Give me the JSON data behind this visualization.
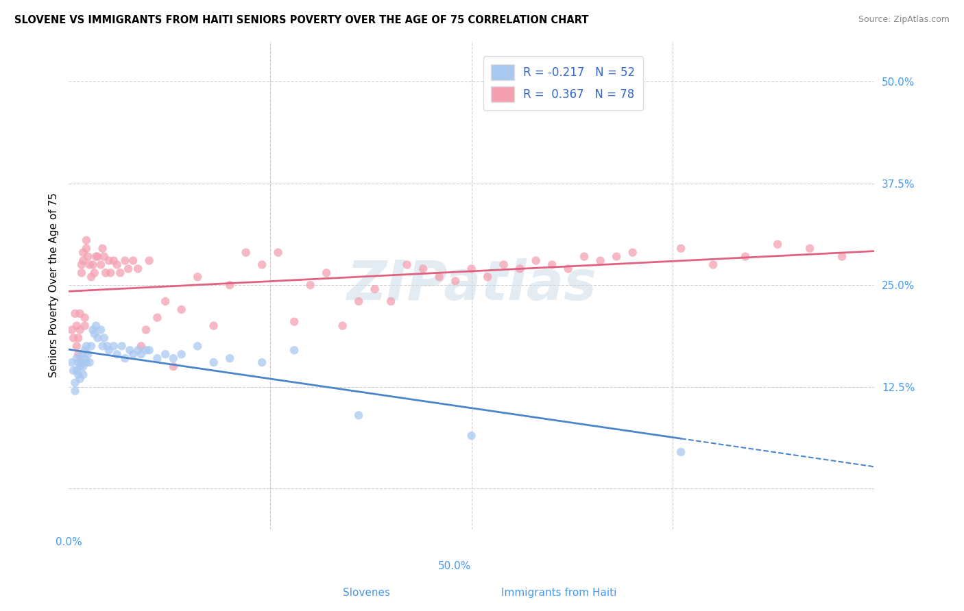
{
  "title": "SLOVENE VS IMMIGRANTS FROM HAITI SENIORS POVERTY OVER THE AGE OF 75 CORRELATION CHART",
  "source": "Source: ZipAtlas.com",
  "ylabel": "Seniors Poverty Over the Age of 75",
  "xlabel_slovenes": "Slovenes",
  "xlabel_haiti": "Immigrants from Haiti",
  "xmin": 0.0,
  "xmax": 0.5,
  "ymin": -0.05,
  "ymax": 0.55,
  "R_slovene": -0.217,
  "N_slovene": 52,
  "R_haiti": 0.367,
  "N_haiti": 78,
  "color_slovene": "#a8c8f0",
  "color_haiti": "#f4a0b0",
  "line_color_slovene": "#4a86c8",
  "line_color_haiti": "#e06080",
  "watermark": "ZIPatlas",
  "slovene_x": [
    0.002,
    0.003,
    0.004,
    0.004,
    0.005,
    0.005,
    0.006,
    0.006,
    0.007,
    0.007,
    0.008,
    0.008,
    0.009,
    0.009,
    0.01,
    0.01,
    0.011,
    0.011,
    0.012,
    0.013,
    0.014,
    0.015,
    0.016,
    0.017,
    0.018,
    0.02,
    0.021,
    0.022,
    0.024,
    0.025,
    0.028,
    0.03,
    0.033,
    0.035,
    0.038,
    0.04,
    0.043,
    0.045,
    0.048,
    0.05,
    0.055,
    0.06,
    0.065,
    0.07,
    0.08,
    0.09,
    0.1,
    0.12,
    0.14,
    0.18,
    0.25,
    0.38
  ],
  "slovene_y": [
    0.155,
    0.145,
    0.13,
    0.12,
    0.16,
    0.145,
    0.155,
    0.14,
    0.15,
    0.135,
    0.155,
    0.165,
    0.15,
    0.14,
    0.16,
    0.17,
    0.175,
    0.155,
    0.165,
    0.155,
    0.175,
    0.195,
    0.19,
    0.2,
    0.185,
    0.195,
    0.175,
    0.185,
    0.175,
    0.17,
    0.175,
    0.165,
    0.175,
    0.16,
    0.17,
    0.165,
    0.17,
    0.165,
    0.17,
    0.17,
    0.16,
    0.165,
    0.16,
    0.165,
    0.175,
    0.155,
    0.16,
    0.155,
    0.17,
    0.09,
    0.065,
    0.045
  ],
  "haiti_x": [
    0.002,
    0.003,
    0.004,
    0.005,
    0.005,
    0.006,
    0.006,
    0.007,
    0.007,
    0.008,
    0.008,
    0.009,
    0.009,
    0.01,
    0.01,
    0.011,
    0.011,
    0.012,
    0.013,
    0.014,
    0.015,
    0.016,
    0.017,
    0.018,
    0.02,
    0.021,
    0.022,
    0.023,
    0.025,
    0.026,
    0.028,
    0.03,
    0.032,
    0.035,
    0.037,
    0.04,
    0.043,
    0.045,
    0.048,
    0.05,
    0.055,
    0.06,
    0.065,
    0.07,
    0.08,
    0.09,
    0.1,
    0.11,
    0.12,
    0.13,
    0.14,
    0.15,
    0.16,
    0.17,
    0.18,
    0.19,
    0.2,
    0.21,
    0.22,
    0.23,
    0.24,
    0.25,
    0.26,
    0.27,
    0.28,
    0.29,
    0.3,
    0.31,
    0.32,
    0.33,
    0.34,
    0.35,
    0.38,
    0.4,
    0.42,
    0.44,
    0.46,
    0.48
  ],
  "haiti_y": [
    0.195,
    0.185,
    0.215,
    0.2,
    0.175,
    0.185,
    0.165,
    0.195,
    0.215,
    0.275,
    0.265,
    0.29,
    0.28,
    0.2,
    0.21,
    0.295,
    0.305,
    0.285,
    0.275,
    0.26,
    0.275,
    0.265,
    0.285,
    0.285,
    0.275,
    0.295,
    0.285,
    0.265,
    0.28,
    0.265,
    0.28,
    0.275,
    0.265,
    0.28,
    0.27,
    0.28,
    0.27,
    0.175,
    0.195,
    0.28,
    0.21,
    0.23,
    0.15,
    0.22,
    0.26,
    0.2,
    0.25,
    0.29,
    0.275,
    0.29,
    0.205,
    0.25,
    0.265,
    0.2,
    0.23,
    0.245,
    0.23,
    0.275,
    0.27,
    0.26,
    0.255,
    0.27,
    0.26,
    0.275,
    0.27,
    0.28,
    0.275,
    0.27,
    0.285,
    0.28,
    0.285,
    0.29,
    0.295,
    0.275,
    0.285,
    0.3,
    0.295,
    0.285
  ]
}
